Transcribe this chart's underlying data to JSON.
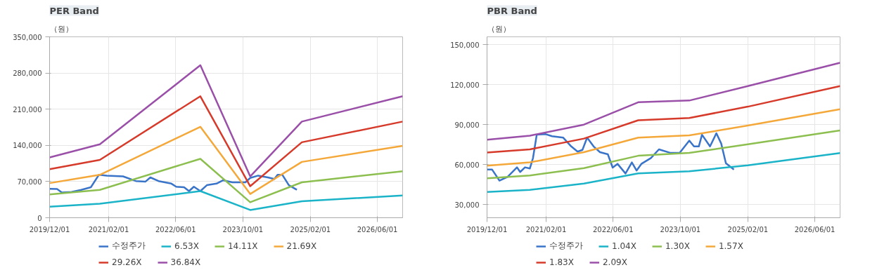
{
  "chart_data": [
    {
      "type": "line",
      "title": "PER Band",
      "ylabel": "（원）",
      "grid": true,
      "legend": "bottom",
      "marker": "none",
      "line_style": "solid",
      "xlim": [
        "2019-12-01",
        "2026-12-01"
      ],
      "ylim": [
        0,
        350000
      ],
      "xticks": [
        {
          "value": "2019-12-01",
          "label": "2019/12/01"
        },
        {
          "value": "2021-02-01",
          "label": "2021/02/01"
        },
        {
          "value": "2022-06-01",
          "label": "2022/06/01"
        },
        {
          "value": "2023-10-01",
          "label": "2023/10/01"
        },
        {
          "value": "2025-02-01",
          "label": "2025/02/01"
        },
        {
          "value": "2026-06-01",
          "label": "2026/06/01"
        }
      ],
      "yticks": [
        {
          "value": 0,
          "label": "0"
        },
        {
          "value": 70000,
          "label": "70,000"
        },
        {
          "value": 140000,
          "label": "140,000"
        },
        {
          "value": 210000,
          "label": "210,000"
        },
        {
          "value": 280000,
          "label": "280,000"
        },
        {
          "value": 350000,
          "label": "350,000"
        }
      ],
      "series": [
        {
          "name": "수정주가",
          "color": "#3a74c8",
          "x": [
            "2019-12-01",
            "2020-01-24",
            "2020-02-28",
            "2020-05-08",
            "2020-07-17",
            "2020-09-25",
            "2020-11-22",
            "2021-01-19",
            "2021-05-16",
            "2021-08-17",
            "2021-10-26",
            "2021-11-30",
            "2022-01-28",
            "2022-05-01",
            "2022-06-05",
            "2022-08-01",
            "2022-09-06",
            "2022-10-11",
            "2022-11-27",
            "2023-01-13",
            "2023-03-24",
            "2023-05-10",
            "2023-07-17",
            "2023-10-19",
            "2023-11-23",
            "2024-01-20",
            "2024-03-30",
            "2024-05-16",
            "2024-06-08",
            "2024-07-13",
            "2024-08-29",
            "2024-10-26"
          ],
          "values": [
            56000,
            55500,
            48700,
            50000,
            54000,
            59000,
            83000,
            81500,
            80000,
            71000,
            70000,
            78000,
            71000,
            66000,
            60000,
            59000,
            51500,
            60000,
            51500,
            63000,
            66000,
            72500,
            68500,
            68500,
            77000,
            81500,
            78000,
            75000,
            83000,
            83000,
            63000,
            54000
          ]
        },
        {
          "name": "6.53X",
          "color": "#1ab3c8",
          "x": [
            "2019-12-01",
            "2020-11-29",
            "2022-11-27",
            "2023-11-23",
            "2024-12-01",
            "2026-12-01"
          ],
          "values": [
            21500,
            27000,
            51500,
            15000,
            32000,
            43000
          ]
        },
        {
          "name": "14.11X",
          "color": "#8cbf4f",
          "x": [
            "2019-12-01",
            "2020-11-29",
            "2022-11-27",
            "2023-11-23",
            "2024-12-01",
            "2026-12-01"
          ],
          "values": [
            45000,
            54000,
            114000,
            30000,
            68500,
            90000
          ]
        },
        {
          "name": "21.69X",
          "color": "#f5a83a",
          "x": [
            "2019-12-01",
            "2020-11-29",
            "2022-11-27",
            "2023-11-23",
            "2024-12-01",
            "2026-12-01"
          ],
          "values": [
            67000,
            83000,
            176000,
            46000,
            108000,
            139000
          ]
        },
        {
          "name": "29.26X",
          "color": "#d63a2a",
          "x": [
            "2019-12-01",
            "2020-11-29",
            "2022-11-27",
            "2023-11-23",
            "2024-12-01",
            "2026-12-01"
          ],
          "values": [
            94000,
            112000,
            235000,
            61000,
            146000,
            186000
          ]
        },
        {
          "name": "36.84X",
          "color": "#9a4fa8",
          "x": [
            "2019-12-01",
            "2020-11-29",
            "2022-11-27",
            "2023-11-23",
            "2024-12-01",
            "2026-12-01"
          ],
          "values": [
            116600,
            142000,
            295000,
            80000,
            186000,
            235000
          ]
        }
      ]
    },
    {
      "type": "line",
      "title": "PBR Band",
      "ylabel": "（원）",
      "grid": true,
      "legend": "bottom",
      "marker": "none",
      "line_style": "solid",
      "xlim": [
        "2019-12-01",
        "2026-12-01"
      ],
      "ylim": [
        20000,
        156000
      ],
      "xticks": [
        {
          "value": "2019-12-01",
          "label": "2019/12/01"
        },
        {
          "value": "2021-02-01",
          "label": "2021/02/01"
        },
        {
          "value": "2022-06-01",
          "label": "2022/06/01"
        },
        {
          "value": "2023-10-01",
          "label": "2023/10/01"
        },
        {
          "value": "2025-02-01",
          "label": "2025/02/01"
        },
        {
          "value": "2026-06-01",
          "label": "2026/06/01"
        }
      ],
      "yticks": [
        {
          "value": 30000,
          "label": "30,000"
        },
        {
          "value": 60000,
          "label": "60,000"
        },
        {
          "value": 90000,
          "label": "90,000"
        },
        {
          "value": 120000,
          "label": "120,000"
        },
        {
          "value": 150000,
          "label": "150,000"
        }
      ],
      "series": [
        {
          "name": "수정주가",
          "color": "#3a74c8",
          "x": [
            "2019-12-01",
            "2020-01-07",
            "2020-02-29",
            "2020-04-27",
            "2020-07-05",
            "2020-07-28",
            "2020-09-01",
            "2020-10-06",
            "2020-10-29",
            "2020-11-25",
            "2021-01-29",
            "2021-03-16",
            "2021-06-05",
            "2021-08-02",
            "2021-09-17",
            "2021-10-22",
            "2021-11-25",
            "2022-01-11",
            "2022-02-26",
            "2022-04-24",
            "2022-05-29",
            "2022-07-03",
            "2022-08-30",
            "2022-10-15",
            "2022-11-18",
            "2022-12-23",
            "2023-03-02",
            "2023-04-29",
            "2023-07-19",
            "2023-09-26",
            "2023-12-05",
            "2024-01-08",
            "2024-02-12",
            "2024-03-06",
            "2024-05-03",
            "2024-06-18",
            "2024-07-23",
            "2024-08-26",
            "2024-10-23"
          ],
          "values": [
            56200,
            56200,
            47900,
            50700,
            57900,
            54400,
            57900,
            57000,
            64900,
            82400,
            82800,
            81300,
            80200,
            73600,
            69700,
            71000,
            80200,
            73600,
            69300,
            67700,
            57700,
            60500,
            53300,
            61600,
            55500,
            60500,
            64900,
            71400,
            68800,
            68800,
            78000,
            73600,
            73600,
            82400,
            73600,
            83500,
            75800,
            61000,
            56200
          ]
        },
        {
          "name": "1.04X",
          "color": "#1ab3c8",
          "x": [
            "2019-12-01",
            "2020-10-06",
            "2021-11-02",
            "2022-11-30",
            "2023-12-05",
            "2025-02-01",
            "2026-12-01"
          ],
          "values": [
            39400,
            41000,
            45700,
            53300,
            54900,
            59400,
            68600
          ]
        },
        {
          "name": "1.30X",
          "color": "#8cbf4f",
          "x": [
            "2019-12-01",
            "2020-10-06",
            "2021-11-02",
            "2022-11-30",
            "2023-12-05",
            "2025-02-01",
            "2026-12-01"
          ],
          "values": [
            49600,
            51800,
            57300,
            66600,
            68800,
            75200,
            85600
          ]
        },
        {
          "name": "1.57X",
          "color": "#f5a83a",
          "x": [
            "2019-12-01",
            "2020-10-06",
            "2021-11-02",
            "2022-11-30",
            "2023-12-05",
            "2025-02-01",
            "2026-12-01"
          ],
          "values": [
            59200,
            61600,
            69300,
            80200,
            81900,
            89300,
            101600
          ]
        },
        {
          "name": "1.83X",
          "color": "#d63a2a",
          "x": [
            "2019-12-01",
            "2020-10-06",
            "2021-11-02",
            "2022-11-30",
            "2023-12-05",
            "2025-02-01",
            "2026-12-01"
          ],
          "values": [
            69000,
            71400,
            79500,
            93300,
            95000,
            103500,
            119000
          ]
        },
        {
          "name": "2.09X",
          "color": "#9a4fa8",
          "x": [
            "2019-12-01",
            "2020-10-06",
            "2021-11-02",
            "2022-11-30",
            "2023-12-05",
            "2025-02-01",
            "2026-12-01"
          ],
          "values": [
            78600,
            81700,
            90000,
            106800,
            108100,
            119000,
            136500
          ]
        }
      ]
    }
  ]
}
